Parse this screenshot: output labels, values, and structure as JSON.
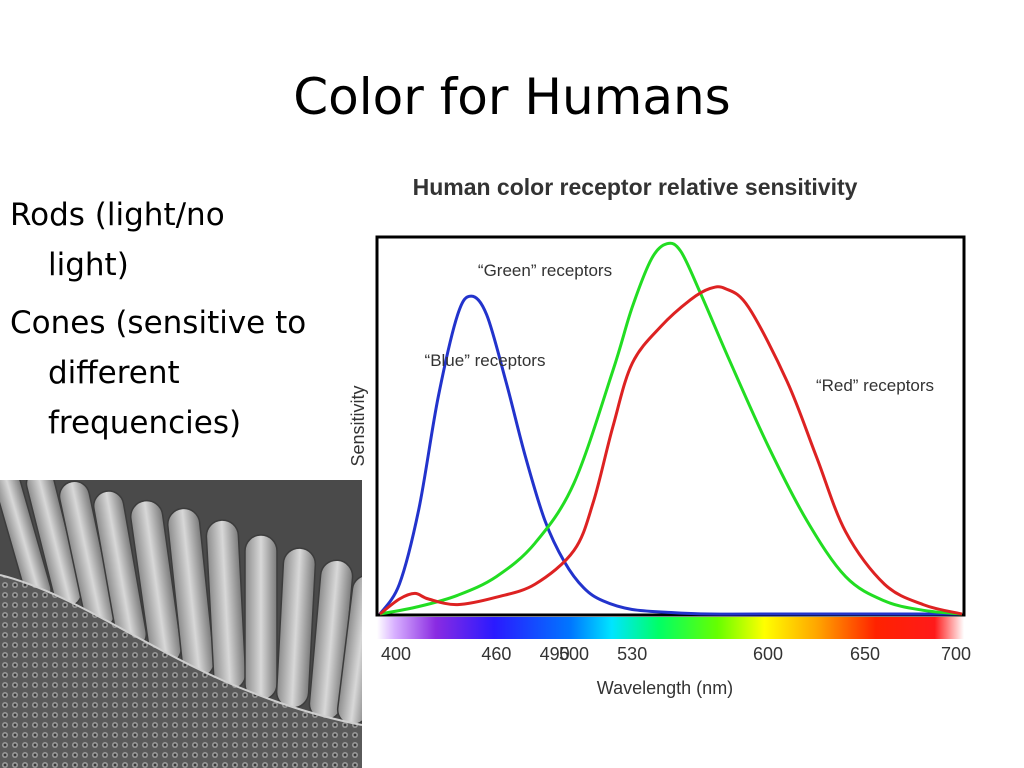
{
  "slide": {
    "title": "Color for Humans",
    "bullets": [
      "Rods (light/no light)",
      "Cones (sensitive to different frequencies)"
    ]
  },
  "photo": {
    "icon": "retina-rods-cones-micrograph"
  },
  "chart_data": {
    "type": "line",
    "title": "Human color receptor relative sensitivity",
    "xlabel": "Wavelength (nm)",
    "ylabel": "Sensitivity",
    "xlim": [
      400,
      700
    ],
    "ylim": [
      0,
      1
    ],
    "grid": false,
    "x_ticks": [
      400,
      460,
      490,
      500,
      530,
      600,
      650,
      700
    ],
    "x_tick_labels": [
      "400",
      "460",
      "490",
      "500",
      "530",
      "600",
      "650",
      "700"
    ],
    "spectrum_bar": true,
    "series": [
      {
        "name": "“Blue” receptors",
        "color": "#2233cc",
        "x": [
          400,
          410,
          420,
          430,
          440,
          447,
          455,
          465,
          475,
          485,
          495,
          505,
          515,
          530,
          550,
          570,
          600,
          700
        ],
        "y": [
          0.0,
          0.08,
          0.28,
          0.58,
          0.8,
          0.85,
          0.8,
          0.62,
          0.42,
          0.25,
          0.14,
          0.07,
          0.035,
          0.012,
          0.004,
          0.0,
          0.0,
          0.0
        ]
      },
      {
        "name": "“Green” receptors",
        "color": "#22dd22",
        "x": [
          400,
          420,
          440,
          460,
          480,
          500,
          520,
          530,
          540,
          548,
          555,
          565,
          580,
          600,
          620,
          640,
          660,
          680,
          700
        ],
        "y": [
          0.0,
          0.02,
          0.05,
          0.1,
          0.19,
          0.35,
          0.65,
          0.82,
          0.95,
          0.99,
          0.97,
          0.86,
          0.68,
          0.45,
          0.25,
          0.1,
          0.035,
          0.01,
          0.0
        ]
      },
      {
        "name": "“Red” receptors",
        "color": "#dd2222",
        "x": [
          400,
          410,
          418,
          425,
          440,
          460,
          480,
          500,
          510,
          520,
          530,
          545,
          560,
          570,
          578,
          590,
          610,
          625,
          640,
          660,
          680,
          700
        ],
        "y": [
          0.0,
          0.04,
          0.055,
          0.04,
          0.025,
          0.045,
          0.08,
          0.17,
          0.3,
          0.5,
          0.67,
          0.77,
          0.84,
          0.87,
          0.87,
          0.82,
          0.62,
          0.42,
          0.22,
          0.08,
          0.025,
          0.0
        ]
      }
    ],
    "annotations": [
      {
        "text": "“Green” receptors",
        "series": 1
      },
      {
        "text": "“Blue” receptors",
        "series": 0
      },
      {
        "text": "“Red” receptors",
        "series": 2
      }
    ]
  }
}
